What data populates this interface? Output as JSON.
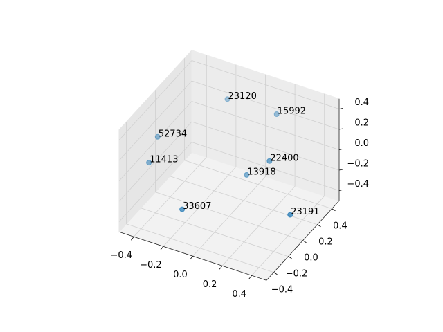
{
  "chart_data": {
    "type": "scatter3d",
    "x": [
      -0.13,
      0.15,
      -0.46,
      -0.48,
      0.19,
      0.04,
      -0.23,
      0.36
    ],
    "y": [
      0.24,
      0.35,
      -0.05,
      -0.13,
      0.17,
      0.16,
      -0.18,
      0.11
    ],
    "z": [
      0.4,
      0.3,
      0.1,
      -0.1,
      0,
      -0.2,
      -0.4,
      -0.4
    ],
    "labels": [
      "23120",
      "15992",
      "52734",
      "11413",
      "22400",
      "13918",
      "33607",
      "23191"
    ],
    "color": "#1f77b4",
    "xlim": [
      -0.5,
      0.5
    ],
    "ylim": [
      -0.5,
      0.5
    ],
    "zlim": [
      -0.5,
      0.5
    ],
    "xticks": [
      {
        "value": -0.4,
        "label": "−0.4"
      },
      {
        "value": -0.2,
        "label": "−0.2"
      },
      {
        "value": 0,
        "label": "0.0"
      },
      0.2,
      0.4
    ],
    "yticks": [
      {
        "value": -0.4,
        "label": "−0.4"
      },
      {
        "value": -0.2,
        "label": "−0.2"
      },
      {
        "value": 0,
        "label": "0.0"
      },
      0.2,
      0.4
    ],
    "zticks": [
      {
        "value": -0.4,
        "label": "−0.4"
      },
      {
        "value": -0.2,
        "label": "−0.2"
      },
      {
        "value": 0,
        "label": "0.0"
      },
      0.2,
      0.4
    ],
    "grid": true
  }
}
